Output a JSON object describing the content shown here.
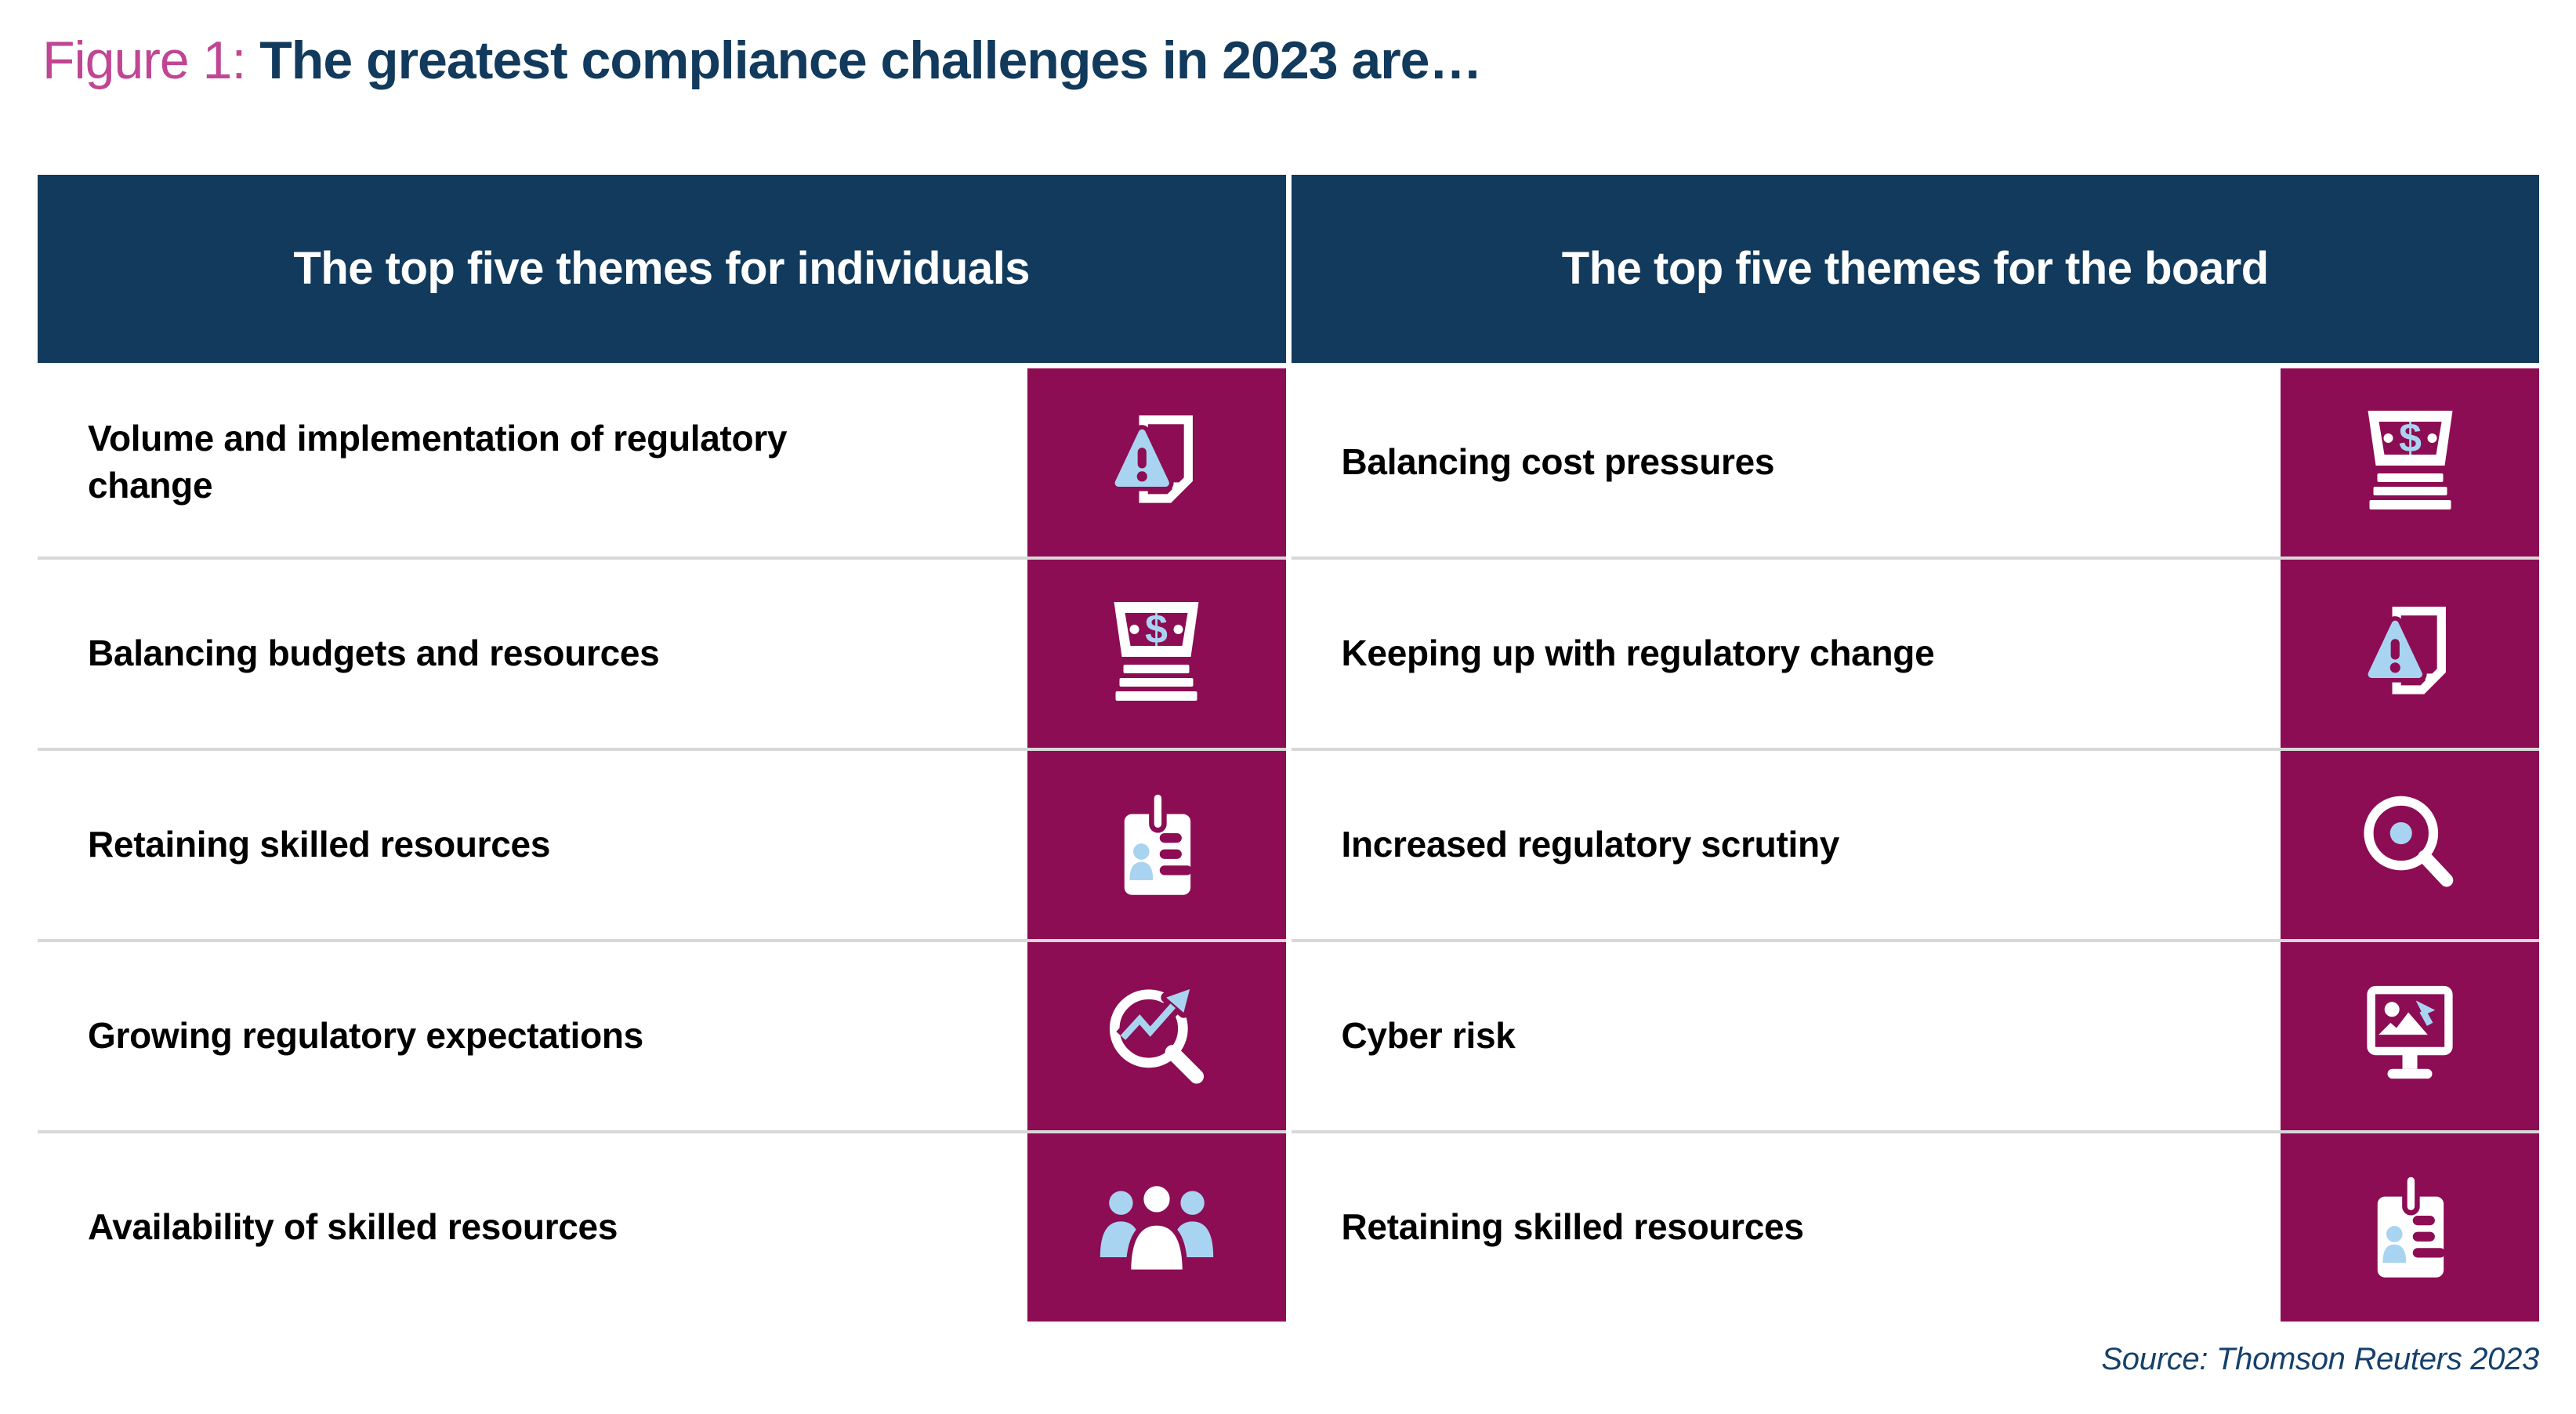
{
  "title": {
    "prefix": "Figure 1:",
    "text": "The greatest compliance challenges in 2023 are…"
  },
  "table": {
    "columns": [
      {
        "header": "The top five themes for individuals",
        "rows": [
          {
            "label": "Volume and implementation of regulatory change",
            "icon": "document-warning"
          },
          {
            "label": "Balancing budgets and resources",
            "icon": "money-stack"
          },
          {
            "label": "Retaining skilled resources",
            "icon": "id-badge"
          },
          {
            "label": "Growing regulatory expectations",
            "icon": "magnifier-trend"
          },
          {
            "label": "Availability of skilled resources",
            "icon": "people-group"
          }
        ]
      },
      {
        "header": "The top five themes for the board",
        "rows": [
          {
            "label": "Balancing cost pressures",
            "icon": "money-stack"
          },
          {
            "label": "Keeping up with regulatory change",
            "icon": "document-warning"
          },
          {
            "label": "Increased regulatory scrutiny",
            "icon": "magnifier-dot"
          },
          {
            "label": "Cyber risk",
            "icon": "monitor-image"
          },
          {
            "label": "Retaining skilled resources",
            "icon": "id-badge"
          }
        ]
      }
    ]
  },
  "source": "Source: Thomson Reuters 2023",
  "colors": {
    "navy": "#113A5C",
    "ruby": "#8C0D53",
    "light_blue": "#A9D4F1",
    "title_pink": "#C04693",
    "divider_gray": "#D8D8D8"
  }
}
